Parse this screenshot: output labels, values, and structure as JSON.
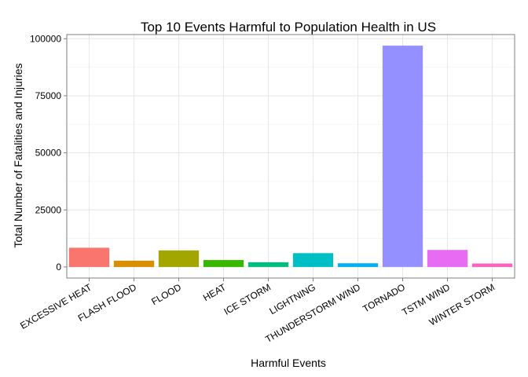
{
  "chart_data": {
    "type": "bar",
    "title": "Top 10 Events Harmful to Population Health in US",
    "xlabel": "Harmful Events",
    "ylabel": "Total Number of Fatalities and Injuries",
    "categories": [
      "EXCESSIVE HEAT",
      "FLASH FLOOD",
      "FLOOD",
      "HEAT",
      "ICE STORM",
      "LIGHTNING",
      "THUNDERSTORM WIND",
      "TORNADO",
      "TSTM WIND",
      "WINTER STORM"
    ],
    "values": [
      8428,
      2755,
      7259,
      3037,
      2064,
      6046,
      1621,
      96979,
      7461,
      1527
    ],
    "colors": [
      "#F8766D",
      "#D89000",
      "#A3A500",
      "#39B600",
      "#00BF7D",
      "#00BFC4",
      "#00B0F6",
      "#9590FF",
      "#E76BF3",
      "#FF62BC"
    ],
    "ylim": [
      -4849,
      101828
    ],
    "yticks": [
      0,
      25000,
      50000,
      75000,
      100000
    ],
    "grid": true,
    "legend": "none"
  }
}
